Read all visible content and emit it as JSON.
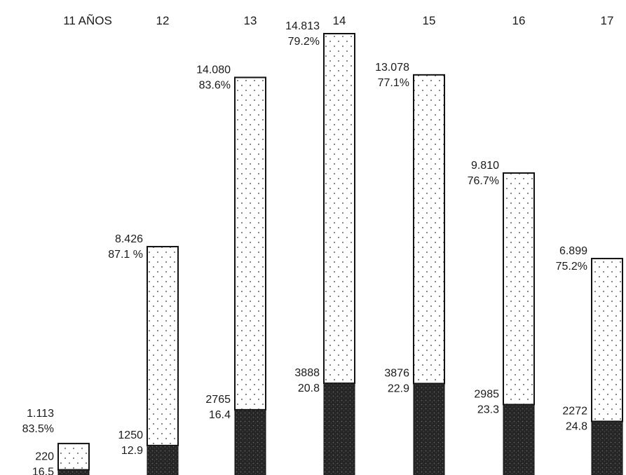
{
  "chart_data": {
    "type": "bar",
    "stacked": true,
    "categories": [
      "11 AÑOS",
      "12",
      "13",
      "14",
      "15",
      "16",
      "17"
    ],
    "series": [
      {
        "values": [
          220,
          1250,
          2765,
          3888,
          3876,
          2985,
          2272
        ],
        "percent_labels": [
          "16.5",
          "12.9",
          "16.4",
          "20.8",
          "22.9",
          "23.3",
          "24.8"
        ],
        "value_labels": [
          "220",
          "1250",
          "2765",
          "3888",
          "3876",
          "2985",
          "2272"
        ],
        "color": "#2b2b2b",
        "pattern": "dark-stipple"
      },
      {
        "values": [
          1113,
          8426,
          14080,
          14813,
          13078,
          9810,
          6899
        ],
        "percent_labels": [
          "83.5%",
          "87.1 %",
          "83.6%",
          "79.2%",
          "77.1%",
          "76.7%",
          "75.2%"
        ],
        "value_labels": [
          "1.113",
          "8.426",
          "14.080",
          "14.813",
          "13.078",
          "9.810",
          "6.899"
        ],
        "color": "#ffffff",
        "pattern": "dotted"
      }
    ],
    "title": "",
    "xlabel": "",
    "ylabel": "",
    "grid": false,
    "legend": "none",
    "axes_visible": false
  }
}
